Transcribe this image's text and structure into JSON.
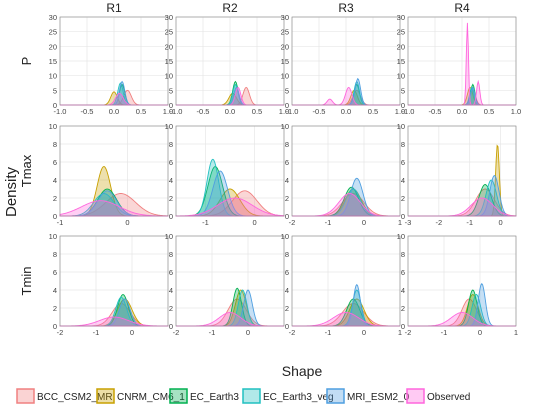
{
  "figure": {
    "ylabel": "Density",
    "xlabel": "Shape",
    "col_labels": [
      "R1",
      "R2",
      "R3",
      "R4"
    ],
    "row_labels": [
      "P",
      "Tmax",
      "Tmin"
    ]
  },
  "legend": {
    "placement": "bottom",
    "entries": [
      {
        "name": "BCC_CSM2_MR",
        "color": "#f08080"
      },
      {
        "name": "CNRM_CM6_1",
        "color": "#c8a000"
      },
      {
        "name": "EC_Earth3",
        "color": "#00b050"
      },
      {
        "name": "EC_Earth3_veg",
        "color": "#20c0c0"
      },
      {
        "name": "MRI_ESM2_0",
        "color": "#4f9fe0"
      },
      {
        "name": "Observed",
        "color": "#ff66dd"
      }
    ]
  },
  "chart_data": [
    {
      "type": "area",
      "row": "P",
      "col": "R1",
      "xlim": [
        -1.0,
        1.0
      ],
      "ylim": [
        0,
        30
      ],
      "xticks": [
        "-1.0",
        "-0.5",
        "0.0",
        "0.5",
        "1.0"
      ],
      "yticks": [
        "0",
        "5",
        "10",
        "15",
        "20",
        "25",
        "30"
      ],
      "series": [
        {
          "name": "BCC_CSM2_MR",
          "peaks": [
            [
              0.25,
              5,
              0.07
            ]
          ]
        },
        {
          "name": "CNRM_CM6_1",
          "peaks": [
            [
              0.0,
              4.5,
              0.06
            ]
          ]
        },
        {
          "name": "EC_Earth3",
          "peaks": [
            [
              0.15,
              7,
              0.05
            ]
          ]
        },
        {
          "name": "EC_Earth3_veg",
          "peaks": [
            [
              0.12,
              7.5,
              0.05
            ]
          ]
        },
        {
          "name": "MRI_ESM2_0",
          "peaks": [
            [
              0.15,
              8,
              0.05
            ]
          ]
        },
        {
          "name": "Observed",
          "peaks": [
            [
              0.1,
              4,
              0.07
            ]
          ]
        }
      ]
    },
    {
      "type": "area",
      "row": "P",
      "col": "R2",
      "xlim": [
        -1.0,
        1.0
      ],
      "ylim": [
        0,
        30
      ],
      "xticks": [
        "-1.0",
        "-0.5",
        "0.0",
        "0.5",
        "1.0"
      ],
      "yticks": [
        "0",
        "5",
        "10",
        "15",
        "20",
        "25",
        "30"
      ],
      "series": [
        {
          "name": "BCC_CSM2_MR",
          "peaks": [
            [
              0.3,
              6,
              0.06
            ]
          ]
        },
        {
          "name": "CNRM_CM6_1",
          "peaks": [
            [
              0.05,
              4,
              0.07
            ]
          ]
        },
        {
          "name": "EC_Earth3",
          "peaks": [
            [
              0.1,
              8,
              0.05
            ]
          ]
        },
        {
          "name": "EC_Earth3_veg",
          "peaks": [
            [
              0.1,
              7,
              0.05
            ]
          ]
        },
        {
          "name": "MRI_ESM2_0",
          "peaks": [
            [
              0.12,
              6,
              0.05
            ]
          ]
        },
        {
          "name": "Observed",
          "peaks": [
            [
              0.15,
              6,
              0.05
            ]
          ]
        }
      ]
    },
    {
      "type": "area",
      "row": "P",
      "col": "R3",
      "xlim": [
        -1.0,
        1.0
      ],
      "ylim": [
        0,
        30
      ],
      "xticks": [
        "-1.0",
        "-0.5",
        "0.0",
        "0.5",
        "1.0"
      ],
      "yticks": [
        "0",
        "5",
        "10",
        "15",
        "20",
        "25",
        "30"
      ],
      "series": [
        {
          "name": "BCC_CSM2_MR",
          "peaks": [
            [
              0.2,
              5,
              0.07
            ]
          ]
        },
        {
          "name": "CNRM_CM6_1",
          "peaks": [
            [
              0.15,
              5,
              0.06
            ]
          ]
        },
        {
          "name": "EC_Earth3",
          "peaks": [
            [
              0.2,
              7,
              0.05
            ]
          ]
        },
        {
          "name": "EC_Earth3_veg",
          "peaks": [
            [
              0.2,
              8,
              0.05
            ]
          ]
        },
        {
          "name": "MRI_ESM2_0",
          "peaks": [
            [
              0.22,
              9,
              0.05
            ]
          ]
        },
        {
          "name": "Observed",
          "peaks": [
            [
              0.05,
              6,
              0.06
            ],
            [
              -0.3,
              2,
              0.05
            ]
          ]
        }
      ]
    },
    {
      "type": "area",
      "row": "P",
      "col": "R4",
      "xlim": [
        -1.0,
        1.0
      ],
      "ylim": [
        0,
        30
      ],
      "xticks": [
        "-1.0",
        "-0.5",
        "0.0",
        "0.5",
        "1.0"
      ],
      "yticks": [
        "0",
        "5",
        "10",
        "15",
        "20",
        "25",
        "30"
      ],
      "series": [
        {
          "name": "BCC_CSM2_MR",
          "peaks": [
            [
              0.2,
              5,
              0.05
            ]
          ]
        },
        {
          "name": "CNRM_CM6_1",
          "peaks": [
            [
              0.15,
              6,
              0.05
            ]
          ]
        },
        {
          "name": "EC_Earth3",
          "peaks": [
            [
              0.2,
              7,
              0.04
            ]
          ]
        },
        {
          "name": "EC_Earth3_veg",
          "peaks": [
            [
              0.18,
              6,
              0.04
            ]
          ]
        },
        {
          "name": "MRI_ESM2_0",
          "peaks": [
            [
              0.2,
              6,
              0.04
            ]
          ]
        },
        {
          "name": "Observed",
          "peaks": [
            [
              0.1,
              28,
              0.02
            ],
            [
              0.3,
              8,
              0.03
            ]
          ]
        }
      ]
    },
    {
      "type": "area",
      "row": "Tmax",
      "col": "R1",
      "xlim": [
        -1,
        0.6
      ],
      "ylim": [
        0,
        10
      ],
      "xticks": [
        "-1",
        "0"
      ],
      "yticks": [
        "0",
        "2",
        "4",
        "6",
        "8",
        "10"
      ],
      "series": [
        {
          "name": "BCC_CSM2_MR",
          "peaks": [
            [
              -0.1,
              2.5,
              0.22
            ]
          ]
        },
        {
          "name": "CNRM_CM6_1",
          "peaks": [
            [
              -0.35,
              5.5,
              0.1
            ]
          ]
        },
        {
          "name": "EC_Earth3",
          "peaks": [
            [
              -0.3,
              3,
              0.14
            ]
          ]
        },
        {
          "name": "EC_Earth3_veg",
          "peaks": [
            [
              -0.35,
              2.5,
              0.15
            ]
          ]
        },
        {
          "name": "MRI_ESM2_0",
          "peaks": [
            [
              -0.3,
              2.8,
              0.14
            ]
          ]
        },
        {
          "name": "Observed",
          "peaks": [
            [
              -0.4,
              1.7,
              0.28
            ]
          ]
        }
      ]
    },
    {
      "type": "area",
      "row": "Tmax",
      "col": "R2",
      "xlim": [
        -1.6,
        0.6
      ],
      "ylim": [
        0,
        10
      ],
      "xticks": [
        "-1",
        "0"
      ],
      "yticks": [
        "0",
        "2",
        "4",
        "6",
        "8",
        "10"
      ],
      "series": [
        {
          "name": "BCC_CSM2_MR",
          "peaks": [
            [
              -0.2,
              2.8,
              0.25
            ]
          ]
        },
        {
          "name": "CNRM_CM6_1",
          "peaks": [
            [
              -0.5,
              3,
              0.2
            ]
          ]
        },
        {
          "name": "EC_Earth3",
          "peaks": [
            [
              -0.8,
              5.5,
              0.15
            ]
          ]
        },
        {
          "name": "EC_Earth3_veg",
          "peaks": [
            [
              -0.85,
              6.3,
              0.12
            ]
          ]
        },
        {
          "name": "MRI_ESM2_0",
          "peaks": [
            [
              -0.7,
              5,
              0.15
            ]
          ]
        },
        {
          "name": "Observed",
          "peaks": [
            [
              -0.4,
              2,
              0.35
            ]
          ]
        }
      ]
    },
    {
      "type": "area",
      "row": "Tmax",
      "col": "R3",
      "xlim": [
        -2,
        1
      ],
      "ylim": [
        0,
        10
      ],
      "xticks": [
        "-2",
        "-1",
        "0",
        "1"
      ],
      "yticks": [
        "0",
        "2",
        "4",
        "6",
        "8",
        "10"
      ],
      "series": [
        {
          "name": "BCC_CSM2_MR",
          "peaks": [
            [
              -0.3,
              2.5,
              0.3
            ]
          ]
        },
        {
          "name": "CNRM_CM6_1",
          "peaks": [
            [
              -0.3,
              3,
              0.22
            ]
          ]
        },
        {
          "name": "EC_Earth3",
          "peaks": [
            [
              -0.35,
              3.2,
              0.2
            ]
          ]
        },
        {
          "name": "EC_Earth3_veg",
          "peaks": [
            [
              -0.3,
              3,
              0.2
            ]
          ]
        },
        {
          "name": "MRI_ESM2_0",
          "peaks": [
            [
              -0.2,
              4.2,
              0.17
            ]
          ]
        },
        {
          "name": "Observed",
          "peaks": [
            [
              -0.4,
              2.5,
              0.3
            ]
          ]
        }
      ]
    },
    {
      "type": "area",
      "row": "Tmax",
      "col": "R4",
      "xlim": [
        -3,
        0.5
      ],
      "ylim": [
        0,
        10
      ],
      "xticks": [
        "-3",
        "-2",
        "-1",
        "0"
      ],
      "yticks": [
        "0",
        "2",
        "4",
        "6",
        "8",
        "10"
      ],
      "series": [
        {
          "name": "BCC_CSM2_MR",
          "peaks": [
            [
              -0.5,
              3,
              0.3
            ]
          ]
        },
        {
          "name": "CNRM_CM6_1",
          "peaks": [
            [
              -0.1,
              8,
              0.06
            ]
          ]
        },
        {
          "name": "EC_Earth3",
          "peaks": [
            [
              -0.5,
              3.5,
              0.2
            ]
          ]
        },
        {
          "name": "EC_Earth3_veg",
          "peaks": [
            [
              -0.3,
              4,
              0.17
            ]
          ]
        },
        {
          "name": "MRI_ESM2_0",
          "peaks": [
            [
              -0.2,
              4.5,
              0.15
            ]
          ]
        },
        {
          "name": "Observed",
          "peaks": [
            [
              -0.6,
              2,
              0.35
            ]
          ]
        }
      ]
    },
    {
      "type": "area",
      "row": "Tmin",
      "col": "R1",
      "xlim": [
        -2,
        1
      ],
      "ylim": [
        0,
        10
      ],
      "xticks": [
        "-2",
        "-1",
        "0"
      ],
      "yticks": [
        "0",
        "2",
        "4",
        "6",
        "8",
        "10"
      ],
      "series": [
        {
          "name": "BCC_CSM2_MR",
          "peaks": [
            [
              -0.3,
              2.5,
              0.25
            ]
          ]
        },
        {
          "name": "CNRM_CM6_1",
          "peaks": [
            [
              -0.2,
              3,
              0.2
            ]
          ]
        },
        {
          "name": "EC_Earth3",
          "peaks": [
            [
              -0.25,
              3.5,
              0.15
            ]
          ]
        },
        {
          "name": "EC_Earth3_veg",
          "peaks": [
            [
              -0.3,
              3.2,
              0.15
            ]
          ]
        },
        {
          "name": "MRI_ESM2_0",
          "peaks": [
            [
              -0.2,
              3,
              0.15
            ]
          ]
        },
        {
          "name": "Observed",
          "peaks": [
            [
              -0.5,
              1,
              0.4
            ]
          ]
        }
      ]
    },
    {
      "type": "area",
      "row": "Tmin",
      "col": "R2",
      "xlim": [
        -2,
        1
      ],
      "ylim": [
        0,
        10
      ],
      "xticks": [
        "-2",
        "-1",
        "0"
      ],
      "yticks": [
        "0",
        "2",
        "4",
        "6",
        "8",
        "10"
      ],
      "series": [
        {
          "name": "BCC_CSM2_MR",
          "peaks": [
            [
              -0.3,
              3,
              0.25
            ]
          ]
        },
        {
          "name": "CNRM_CM6_1",
          "peaks": [
            [
              -0.2,
              4,
              0.15
            ]
          ]
        },
        {
          "name": "EC_Earth3",
          "peaks": [
            [
              -0.3,
              4.2,
              0.12
            ]
          ]
        },
        {
          "name": "EC_Earth3_veg",
          "peaks": [
            [
              -0.15,
              4,
              0.12
            ]
          ]
        },
        {
          "name": "MRI_ESM2_0",
          "peaks": [
            [
              0.0,
              4,
              0.12
            ]
          ]
        },
        {
          "name": "Observed",
          "peaks": [
            [
              -0.5,
              1.5,
              0.3
            ]
          ]
        }
      ]
    },
    {
      "type": "area",
      "row": "Tmin",
      "col": "R3",
      "xlim": [
        -2,
        1
      ],
      "ylim": [
        0,
        10
      ],
      "xticks": [
        "-2",
        "-1",
        "0",
        "1"
      ],
      "yticks": [
        "0",
        "2",
        "4",
        "6",
        "8",
        "10"
      ],
      "series": [
        {
          "name": "BCC_CSM2_MR",
          "peaks": [
            [
              -0.3,
              2.5,
              0.3
            ]
          ]
        },
        {
          "name": "CNRM_CM6_1",
          "peaks": [
            [
              -0.2,
              3,
              0.2
            ]
          ]
        },
        {
          "name": "EC_Earth3",
          "peaks": [
            [
              -0.3,
              3,
              0.18
            ]
          ]
        },
        {
          "name": "EC_Earth3_veg",
          "peaks": [
            [
              -0.2,
              4,
              0.12
            ]
          ]
        },
        {
          "name": "MRI_ESM2_0",
          "peaks": [
            [
              -0.2,
              4.6,
              0.1
            ]
          ]
        },
        {
          "name": "Observed",
          "peaks": [
            [
              -0.5,
              1.5,
              0.35
            ]
          ]
        }
      ]
    },
    {
      "type": "area",
      "row": "Tmin",
      "col": "R4",
      "xlim": [
        -2,
        1
      ],
      "ylim": [
        0,
        10
      ],
      "xticks": [
        "-2",
        "-1",
        "0",
        "1"
      ],
      "yticks": [
        "0",
        "2",
        "4",
        "6",
        "8",
        "10"
      ],
      "series": [
        {
          "name": "BCC_CSM2_MR",
          "peaks": [
            [
              -0.3,
              3,
              0.2
            ]
          ]
        },
        {
          "name": "CNRM_CM6_1",
          "peaks": [
            [
              -0.2,
              3.5,
              0.15
            ]
          ]
        },
        {
          "name": "EC_Earth3",
          "peaks": [
            [
              -0.2,
              4,
              0.12
            ]
          ]
        },
        {
          "name": "EC_Earth3_veg",
          "peaks": [
            [
              -0.1,
              3.5,
              0.12
            ]
          ]
        },
        {
          "name": "MRI_ESM2_0",
          "peaks": [
            [
              0.05,
              4.7,
              0.1
            ]
          ]
        },
        {
          "name": "Observed",
          "peaks": [
            [
              -0.5,
              1.5,
              0.3
            ]
          ]
        }
      ]
    }
  ]
}
